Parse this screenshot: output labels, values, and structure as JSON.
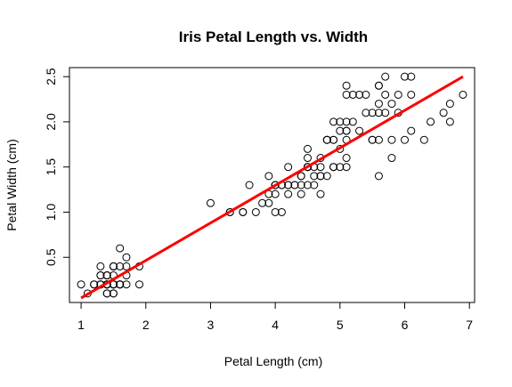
{
  "chart_data": {
    "type": "scatter",
    "title": "Iris Petal Length vs. Width",
    "xlabel": "Petal Length (cm)",
    "ylabel": "Petal Width (cm)",
    "xlim": [
      0.82,
      7.08
    ],
    "ylim": [
      -0.0,
      2.6
    ],
    "xticks": [
      1,
      2,
      3,
      4,
      5,
      6,
      7
    ],
    "yticks": [
      0.5,
      1.0,
      1.5,
      2.0,
      2.5
    ],
    "xtick_labels": [
      "1",
      "2",
      "3",
      "4",
      "5",
      "6",
      "7"
    ],
    "ytick_labels": [
      "0.5",
      "1.0",
      "1.5",
      "2.0",
      "2.5"
    ],
    "grid": false,
    "regression_line": {
      "color": "#ff0000",
      "x": [
        1.0,
        6.9
      ],
      "y": [
        0.05,
        2.5
      ]
    },
    "points": [
      [
        1.4,
        0.2
      ],
      [
        1.4,
        0.2
      ],
      [
        1.3,
        0.2
      ],
      [
        1.5,
        0.2
      ],
      [
        1.4,
        0.2
      ],
      [
        1.7,
        0.4
      ],
      [
        1.4,
        0.3
      ],
      [
        1.5,
        0.2
      ],
      [
        1.4,
        0.2
      ],
      [
        1.5,
        0.1
      ],
      [
        1.5,
        0.2
      ],
      [
        1.6,
        0.2
      ],
      [
        1.4,
        0.1
      ],
      [
        1.1,
        0.1
      ],
      [
        1.2,
        0.2
      ],
      [
        1.5,
        0.4
      ],
      [
        1.3,
        0.4
      ],
      [
        1.4,
        0.3
      ],
      [
        1.7,
        0.3
      ],
      [
        1.5,
        0.3
      ],
      [
        1.7,
        0.2
      ],
      [
        1.5,
        0.4
      ],
      [
        1.0,
        0.2
      ],
      [
        1.7,
        0.5
      ],
      [
        1.9,
        0.2
      ],
      [
        1.6,
        0.2
      ],
      [
        1.6,
        0.4
      ],
      [
        1.5,
        0.2
      ],
      [
        1.4,
        0.2
      ],
      [
        1.6,
        0.2
      ],
      [
        1.6,
        0.2
      ],
      [
        1.5,
        0.4
      ],
      [
        1.5,
        0.1
      ],
      [
        1.4,
        0.2
      ],
      [
        1.5,
        0.2
      ],
      [
        1.2,
        0.2
      ],
      [
        1.3,
        0.2
      ],
      [
        1.4,
        0.1
      ],
      [
        1.3,
        0.2
      ],
      [
        1.5,
        0.2
      ],
      [
        1.3,
        0.3
      ],
      [
        1.3,
        0.3
      ],
      [
        1.3,
        0.2
      ],
      [
        1.6,
        0.6
      ],
      [
        1.9,
        0.4
      ],
      [
        1.4,
        0.3
      ],
      [
        1.6,
        0.2
      ],
      [
        1.4,
        0.2
      ],
      [
        1.5,
        0.2
      ],
      [
        1.4,
        0.2
      ],
      [
        4.7,
        1.4
      ],
      [
        4.5,
        1.5
      ],
      [
        4.9,
        1.5
      ],
      [
        4.0,
        1.3
      ],
      [
        4.6,
        1.5
      ],
      [
        4.5,
        1.3
      ],
      [
        4.7,
        1.6
      ],
      [
        3.3,
        1.0
      ],
      [
        4.6,
        1.3
      ],
      [
        3.9,
        1.4
      ],
      [
        3.5,
        1.0
      ],
      [
        4.2,
        1.5
      ],
      [
        4.0,
        1.0
      ],
      [
        4.7,
        1.4
      ],
      [
        3.6,
        1.3
      ],
      [
        4.4,
        1.4
      ],
      [
        4.5,
        1.5
      ],
      [
        4.1,
        1.0
      ],
      [
        4.5,
        1.5
      ],
      [
        3.9,
        1.1
      ],
      [
        4.8,
        1.8
      ],
      [
        4.0,
        1.3
      ],
      [
        4.9,
        1.5
      ],
      [
        4.7,
        1.2
      ],
      [
        4.3,
        1.3
      ],
      [
        4.4,
        1.4
      ],
      [
        4.8,
        1.4
      ],
      [
        5.0,
        1.7
      ],
      [
        4.5,
        1.5
      ],
      [
        3.5,
        1.0
      ],
      [
        3.8,
        1.1
      ],
      [
        3.7,
        1.0
      ],
      [
        3.9,
        1.2
      ],
      [
        5.1,
        1.6
      ],
      [
        4.5,
        1.5
      ],
      [
        4.5,
        1.6
      ],
      [
        4.7,
        1.5
      ],
      [
        4.4,
        1.3
      ],
      [
        4.1,
        1.3
      ],
      [
        4.0,
        1.3
      ],
      [
        4.4,
        1.2
      ],
      [
        4.6,
        1.4
      ],
      [
        4.0,
        1.2
      ],
      [
        3.3,
        1.0
      ],
      [
        4.2,
        1.3
      ],
      [
        4.2,
        1.2
      ],
      [
        4.2,
        1.3
      ],
      [
        4.3,
        1.3
      ],
      [
        3.0,
        1.1
      ],
      [
        4.1,
        1.3
      ],
      [
        6.0,
        2.5
      ],
      [
        5.1,
        1.9
      ],
      [
        5.9,
        2.1
      ],
      [
        5.6,
        1.8
      ],
      [
        5.8,
        2.2
      ],
      [
        6.6,
        2.1
      ],
      [
        4.5,
        1.7
      ],
      [
        6.3,
        1.8
      ],
      [
        5.8,
        1.8
      ],
      [
        6.1,
        2.5
      ],
      [
        5.1,
        2.0
      ],
      [
        5.3,
        1.9
      ],
      [
        5.5,
        2.1
      ],
      [
        5.0,
        2.0
      ],
      [
        5.1,
        2.4
      ],
      [
        5.3,
        2.3
      ],
      [
        5.5,
        1.8
      ],
      [
        6.7,
        2.2
      ],
      [
        6.9,
        2.3
      ],
      [
        5.0,
        1.5
      ],
      [
        5.7,
        2.3
      ],
      [
        4.9,
        2.0
      ],
      [
        6.7,
        2.0
      ],
      [
        4.9,
        1.8
      ],
      [
        5.7,
        2.1
      ],
      [
        6.0,
        1.8
      ],
      [
        4.8,
        1.8
      ],
      [
        4.9,
        1.8
      ],
      [
        5.6,
        2.1
      ],
      [
        5.8,
        1.6
      ],
      [
        6.1,
        1.9
      ],
      [
        6.4,
        2.0
      ],
      [
        5.6,
        2.2
      ],
      [
        5.1,
        1.5
      ],
      [
        5.6,
        1.4
      ],
      [
        6.1,
        2.3
      ],
      [
        5.6,
        2.4
      ],
      [
        5.5,
        1.8
      ],
      [
        4.8,
        1.8
      ],
      [
        5.4,
        2.1
      ],
      [
        5.6,
        2.4
      ],
      [
        5.1,
        2.3
      ],
      [
        5.1,
        1.9
      ],
      [
        5.9,
        2.3
      ],
      [
        5.7,
        2.5
      ],
      [
        5.2,
        2.3
      ],
      [
        5.0,
        1.9
      ],
      [
        5.2,
        2.0
      ],
      [
        5.4,
        2.3
      ],
      [
        5.1,
        1.8
      ]
    ]
  }
}
